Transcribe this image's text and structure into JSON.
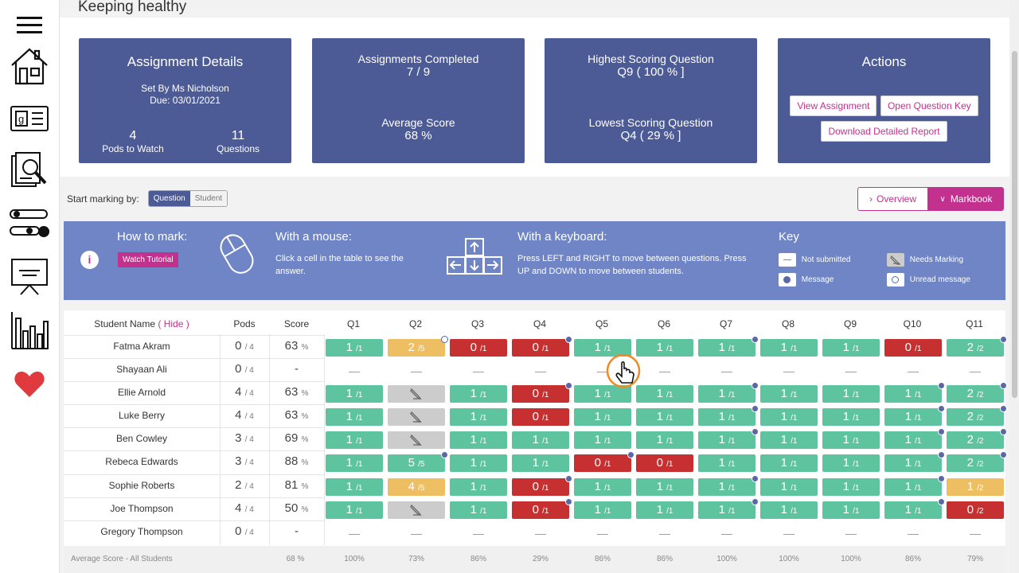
{
  "page": {
    "title": "Keeping healthy"
  },
  "sidebar": {
    "items": [
      {
        "icon": "menu-icon"
      },
      {
        "icon": "home-icon"
      },
      {
        "icon": "gradebook-icon"
      },
      {
        "icon": "magnifier-document-icon"
      },
      {
        "icon": "workflow-icon"
      },
      {
        "icon": "presentation-icon"
      },
      {
        "icon": "bar-chart-icon"
      },
      {
        "icon": "heart-icon"
      }
    ]
  },
  "cards": {
    "details": {
      "title": "Assignment Details",
      "set_by": "Set By Ms Nicholson",
      "due": "Due: 03/01/2021",
      "pods_value": "4",
      "pods_label": "Pods to Watch",
      "questions_value": "11",
      "questions_label": "Questions"
    },
    "completed": {
      "label": "Assignments Completed",
      "value": "7 / 9",
      "avg_label": "Average Score",
      "avg_value": "68 %"
    },
    "scoring": {
      "high_label": "Highest Scoring Question",
      "high_value": "Q9 ( 100 % ]",
      "low_label": "Lowest Scoring Question",
      "low_value": "Q4 ( 29 % ]"
    },
    "actions": {
      "title": "Actions",
      "view": "View Assignment",
      "open_key": "Open Question Key",
      "download": "Download Detailed Report"
    }
  },
  "controls": {
    "start_label": "Start marking by:",
    "opt_question": "Question",
    "opt_student": "Student",
    "overview": "Overview",
    "markbook": "Markbook"
  },
  "banner": {
    "how_title": "How to mark:",
    "watch": "Watch Tutorial",
    "mouse_title": "With a mouse:",
    "mouse_text": "Click a cell in the table to see the answer.",
    "kb_title": "With a keyboard:",
    "kb_text": "Press LEFT and RIGHT to move between questions. Press UP and DOWN to move between students.",
    "key_title": "Key",
    "not_submitted": "Not submitted",
    "message": "Message",
    "needs_marking": "Needs Marking",
    "unread": "Unread message"
  },
  "table": {
    "headers": {
      "name": "Student Name",
      "hide": "( Hide )",
      "pods": "Pods",
      "score": "Score"
    },
    "questions": [
      "Q1",
      "Q2",
      "Q3",
      "Q4",
      "Q5",
      "Q6",
      "Q7",
      "Q8",
      "Q9",
      "Q10",
      "Q11"
    ],
    "rows": [
      {
        "name": "Fatma Akram",
        "pods": "0",
        "pods_of": "/ 4",
        "score": "63",
        "unit": "%"
      },
      {
        "name": "Shayaan Ali",
        "pods": "0",
        "pods_of": "/ 4",
        "score": "-",
        "unit": ""
      },
      {
        "name": "Ellie Arnold",
        "pods": "4",
        "pods_of": "/ 4",
        "score": "63",
        "unit": "%"
      },
      {
        "name": "Luke Berry",
        "pods": "4",
        "pods_of": "/ 4",
        "score": "63",
        "unit": "%"
      },
      {
        "name": "Ben Cowley",
        "pods": "3",
        "pods_of": "/ 4",
        "score": "69",
        "unit": "%"
      },
      {
        "name": "Rebeca Edwards",
        "pods": "3",
        "pods_of": "/ 4",
        "score": "88",
        "unit": "%"
      },
      {
        "name": "Sophie Roberts",
        "pods": "2",
        "pods_of": "/ 4",
        "score": "81",
        "unit": "%"
      },
      {
        "name": "Joe Thompson",
        "pods": "4",
        "pods_of": "/ 4",
        "score": "50",
        "unit": "%"
      },
      {
        "name": "Gregory Thompson",
        "pods": "0",
        "pods_of": "/ 4",
        "score": "-",
        "unit": ""
      }
    ],
    "cells": [
      [
        "g:1:/1",
        "y:2:/5:hol",
        "r:0:/1",
        "r:0:/1:dot",
        "g:1:/1",
        "g:1:/1",
        "g:1:/1:dot",
        "g:1:/1",
        "g:1:/1",
        "r:0:/1",
        "g:2:/2:dot"
      ],
      [
        "d",
        "d",
        "d",
        "d",
        "d",
        "d",
        "d",
        "d",
        "d",
        "d",
        "d"
      ],
      [
        "g:1:/1",
        "n",
        "g:1:/1",
        "r:0:/1:dot",
        "g:1:/1",
        "g:1:/1",
        "g:1:/1:dot",
        "g:1:/1",
        "g:1:/1",
        "g:1:/1:dot",
        "g:2:/2:dot"
      ],
      [
        "g:1:/1",
        "n",
        "g:1:/1",
        "r:0:/1",
        "g:1:/1",
        "g:1:/1",
        "g:1:/1:dot",
        "g:1:/1",
        "g:1:/1",
        "g:1:/1:dot",
        "g:2:/2:dot"
      ],
      [
        "g:1:/1",
        "n",
        "g:1:/1",
        "g:1:/1",
        "g:1:/1",
        "g:1:/1",
        "g:1:/1:dot",
        "g:1:/1",
        "g:1:/1",
        "g:1:/1:dot",
        "g:2:/2:dot"
      ],
      [
        "g:1:/1",
        "g:5:/5:dot",
        "g:1:/1",
        "g:1:/1",
        "r:0:/1:dot",
        "r:0:/1",
        "g:1:/1",
        "g:1:/1",
        "g:1:/1",
        "g:1:/1:dot",
        "g:2:/2:dot"
      ],
      [
        "g:1:/1",
        "y:4:/5",
        "g:1:/1",
        "r:0:/1:dot",
        "g:1:/1",
        "g:1:/1",
        "g:1:/1:dot",
        "g:1:/1",
        "g:1:/1",
        "g:1:/1:dot",
        "y:1:/2"
      ],
      [
        "g:1:/1",
        "n",
        "g:1:/1",
        "r:0:/1:dot",
        "g:1:/1",
        "g:1:/1",
        "g:1:/1:dot",
        "g:1:/1",
        "g:1:/1",
        "g:1:/1:dot",
        "r:0:/2"
      ],
      [
        "d",
        "d",
        "d",
        "d",
        "d",
        "d",
        "d",
        "d",
        "d",
        "d",
        "d"
      ]
    ],
    "footer": {
      "label": "Average Score - All Students",
      "score": "68 %",
      "averages": [
        "100%",
        "73%",
        "86%",
        "29%",
        "86%",
        "86%",
        "100%",
        "100%",
        "100%",
        "86%",
        "79%"
      ]
    }
  },
  "colors": {
    "card": "#4c5a96",
    "banner": "#6f85c6",
    "accent": "#c2318e",
    "green": "#5ec4a0",
    "red": "#c73030",
    "yellow": "#eebf62"
  }
}
